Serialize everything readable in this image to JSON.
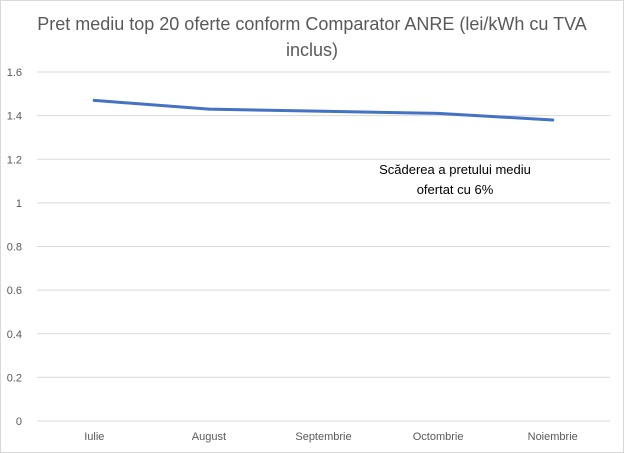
{
  "chart_data": {
    "type": "line",
    "title": "Pret mediu top 20 oferte conform Comparator ANRE (lei/kWh cu TVA inclus)",
    "categories": [
      "Iulie",
      "August",
      "Septembrie",
      "Octombrie",
      "Noiembrie"
    ],
    "series": [
      {
        "values": [
          1.47,
          1.43,
          1.42,
          1.41,
          1.38
        ],
        "color": "#4472c4"
      }
    ],
    "ylim": [
      0,
      1.6
    ],
    "yticks": [
      0,
      0.2,
      0.4,
      0.6,
      0.8,
      1,
      1.2,
      1.4,
      1.6
    ],
    "ytick_labels": [
      "0",
      "0.2",
      "0.4",
      "0.6",
      "0.8",
      "1",
      "1.2",
      "1.4",
      "1.6"
    ],
    "grid": true,
    "gridline_color": "#d9d9d9",
    "annotation": "Scăderea a pretului mediu ofertat cu 6%"
  }
}
